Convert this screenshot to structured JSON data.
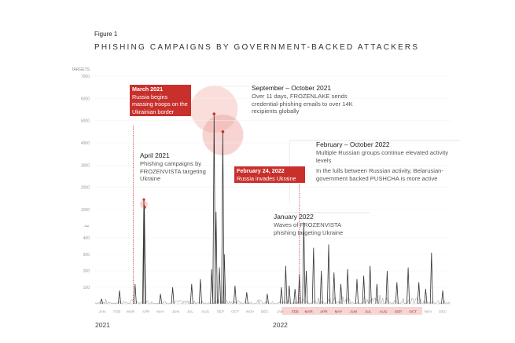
{
  "figure": {
    "label": "Figure 1",
    "title": "PHISHING CAMPAIGNS BY GOVERNMENT-BACKED ATTACKERS"
  },
  "chart_data": {
    "type": "line",
    "ylabel": "TARGETS",
    "yticks_upper": [
      1000,
      2000,
      3000,
      4000,
      5000,
      6000,
      7000
    ],
    "yticks_lower": [
      100,
      200,
      300,
      400
    ],
    "y_break_marker": "~",
    "ylim_lower": [
      0,
      400
    ],
    "ylim_upper": [
      1000,
      7000
    ],
    "x_start": "2021-01-01",
    "x_end": "2022-12-31",
    "xticks": [
      "JAN",
      "FEB",
      "MAR",
      "APR",
      "MAY",
      "JUN",
      "JUL",
      "AUG",
      "SEP",
      "OCT",
      "NOV",
      "DEC",
      "JAN",
      "FEB",
      "MAR",
      "APR",
      "MAY",
      "JUN",
      "JUL",
      "AUG",
      "SEP",
      "OCT",
      "NOV",
      "DEC"
    ],
    "year_labels": [
      "2021",
      "2022"
    ],
    "highlight_range": [
      "2022-02-01",
      "2022-10-31"
    ],
    "series_color": "#333333",
    "accent_color": "#c8302c",
    "spikes": [
      {
        "date": "2021-01-14",
        "value": 30
      },
      {
        "date": "2021-02-20",
        "value": 80
      },
      {
        "date": "2021-03-24",
        "value": 120
      },
      {
        "date": "2021-04-11",
        "value": 1450
      },
      {
        "date": "2021-04-12",
        "value": 1200
      },
      {
        "date": "2021-05-15",
        "value": 60
      },
      {
        "date": "2021-06-09",
        "value": 100
      },
      {
        "date": "2021-07-18",
        "value": 120
      },
      {
        "date": "2021-08-05",
        "value": 150
      },
      {
        "date": "2021-08-28",
        "value": 210
      },
      {
        "date": "2021-09-02",
        "value": 5300
      },
      {
        "date": "2021-09-06",
        "value": 900
      },
      {
        "date": "2021-09-13",
        "value": 220
      },
      {
        "date": "2021-09-20",
        "value": 4500
      },
      {
        "date": "2021-09-23",
        "value": 300
      },
      {
        "date": "2021-10-15",
        "value": 110
      },
      {
        "date": "2021-11-08",
        "value": 70
      },
      {
        "date": "2021-12-20",
        "value": 60
      },
      {
        "date": "2022-01-18",
        "value": 100
      },
      {
        "date": "2022-01-27",
        "value": 230
      },
      {
        "date": "2022-02-03",
        "value": 110
      },
      {
        "date": "2022-02-15",
        "value": 90
      },
      {
        "date": "2022-02-24",
        "value": 180
      },
      {
        "date": "2022-03-05",
        "value": 420
      },
      {
        "date": "2022-03-10",
        "value": 200
      },
      {
        "date": "2022-03-25",
        "value": 340
      },
      {
        "date": "2022-04-10",
        "value": 200
      },
      {
        "date": "2022-04-25",
        "value": 360
      },
      {
        "date": "2022-05-06",
        "value": 190
      },
      {
        "date": "2022-05-20",
        "value": 120
      },
      {
        "date": "2022-06-03",
        "value": 210
      },
      {
        "date": "2022-06-22",
        "value": 150
      },
      {
        "date": "2022-07-06",
        "value": 170
      },
      {
        "date": "2022-07-19",
        "value": 230
      },
      {
        "date": "2022-08-02",
        "value": 120
      },
      {
        "date": "2022-08-23",
        "value": 200
      },
      {
        "date": "2022-09-12",
        "value": 130
      },
      {
        "date": "2022-10-05",
        "value": 220
      },
      {
        "date": "2022-10-27",
        "value": 130
      },
      {
        "date": "2022-11-10",
        "value": 90
      },
      {
        "date": "2022-11-22",
        "value": 310
      },
      {
        "date": "2022-12-15",
        "value": 80
      }
    ],
    "annotations": [
      {
        "key": "march2021",
        "date": "2021-03-20",
        "style": "red",
        "heading": "March 2021",
        "text": "Russia begins massing troops on the Ukrainian border"
      },
      {
        "key": "april2021",
        "date": "2021-04-12",
        "style": "plain",
        "heading": "April 2021",
        "text": "Phishing campaigns by FROZENVISTA targeting Ukraine"
      },
      {
        "key": "sepoct2021",
        "date": "2021-09-03",
        "style": "plain",
        "heading": "September – October 2021",
        "text": "Over 11 days, FROZENLAKE sends credential-phishing emails to over 14K recipients globally"
      },
      {
        "key": "feb242022",
        "date": "2022-02-24",
        "style": "red",
        "heading": "February 24, 2022",
        "text": "Russia invades Ukraine"
      },
      {
        "key": "febroct2022",
        "date": "2022-02-01",
        "style": "plain",
        "heading": "February – October 2022",
        "text": "Multiple Russian groups continue elevated activity levels",
        "text2": "In the lulls between Russian activity, Belarusian-government backed PUSHCHA is more active"
      },
      {
        "key": "jan2022",
        "date": "2022-01-27",
        "style": "plain",
        "heading": "January 2022",
        "text": "Waves of FROZENVISTA phishing targeting Ukraine"
      }
    ]
  }
}
